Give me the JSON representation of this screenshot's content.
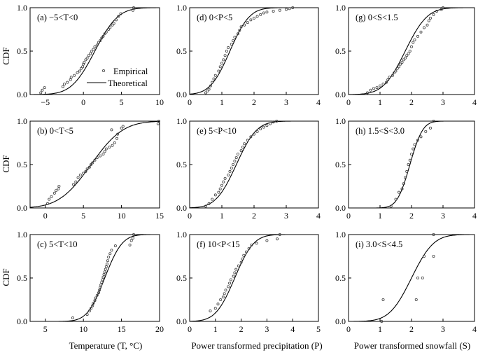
{
  "figure": {
    "legend": {
      "empirical": "Empirical",
      "theoretical": "Theoretical"
    },
    "xlabels": [
      "Temperature (T, °C)",
      "Power transformed precipitation (P)",
      "Power transformed snowfall (S)"
    ],
    "ylabel": "CDF"
  },
  "chart_data": [
    {
      "type": "scatter",
      "id": "a",
      "title": "(a) −5<T<0",
      "xlim": [
        -7,
        10
      ],
      "ylim": [
        0,
        1
      ],
      "xticks": [
        -5,
        0,
        5,
        10
      ],
      "xtick_labels": [
        "−5",
        "0",
        "5",
        "10"
      ],
      "yticks": [
        0,
        0.5,
        1
      ],
      "ytick_labels": [
        "0.0",
        "0.5",
        "1.0"
      ],
      "curve": {
        "mu": 1.5,
        "sigma": 2.4
      },
      "points": [
        [
          -5.6,
          0.02
        ],
        [
          -5.4,
          0.05
        ],
        [
          -5.1,
          0.08
        ],
        [
          -2.7,
          0.09
        ],
        [
          -2.5,
          0.12
        ],
        [
          -2.1,
          0.14
        ],
        [
          -1.7,
          0.17
        ],
        [
          -1.6,
          0.2
        ],
        [
          -1.2,
          0.22
        ],
        [
          -0.8,
          0.25
        ],
        [
          -0.5,
          0.27
        ],
        [
          -0.3,
          0.3
        ],
        [
          -0.1,
          0.32
        ],
        [
          0.0,
          0.35
        ],
        [
          0.1,
          0.37
        ],
        [
          0.3,
          0.4
        ],
        [
          0.5,
          0.42
        ],
        [
          0.7,
          0.45
        ],
        [
          0.9,
          0.47
        ],
        [
          1.1,
          0.5
        ],
        [
          1.3,
          0.52
        ],
        [
          1.5,
          0.55
        ],
        [
          1.8,
          0.57
        ],
        [
          2.0,
          0.6
        ],
        [
          2.2,
          0.62
        ],
        [
          2.4,
          0.65
        ],
        [
          2.6,
          0.67
        ],
        [
          2.8,
          0.7
        ],
        [
          3.0,
          0.72
        ],
        [
          3.3,
          0.75
        ],
        [
          3.5,
          0.77
        ],
        [
          3.8,
          0.8
        ],
        [
          4.0,
          0.82
        ],
        [
          4.3,
          0.86
        ],
        [
          4.6,
          0.9
        ],
        [
          4.9,
          0.93
        ],
        [
          6.5,
          0.97
        ],
        [
          6.6,
          1.0
        ]
      ]
    },
    {
      "type": "scatter",
      "id": "d",
      "title": "(d) 0<P<5",
      "xlim": [
        0,
        4
      ],
      "ylim": [
        0,
        1
      ],
      "xticks": [
        0,
        1,
        2,
        3,
        4
      ],
      "xtick_labels": [
        "0",
        "1",
        "2",
        "3",
        "4"
      ],
      "yticks": [
        0,
        0.5,
        1
      ],
      "ytick_labels": [
        "0.0",
        "0.5",
        "1.0"
      ],
      "curve": {
        "mu": 1.25,
        "sigma": 0.48
      },
      "points": [
        [
          0.5,
          0.02
        ],
        [
          0.55,
          0.04
        ],
        [
          0.6,
          0.06
        ],
        [
          0.65,
          0.1
        ],
        [
          0.7,
          0.14
        ],
        [
          0.75,
          0.18
        ],
        [
          0.8,
          0.22
        ],
        [
          0.9,
          0.27
        ],
        [
          0.95,
          0.32
        ],
        [
          1.0,
          0.36
        ],
        [
          1.05,
          0.4
        ],
        [
          1.1,
          0.45
        ],
        [
          1.15,
          0.5
        ],
        [
          1.2,
          0.54
        ],
        [
          1.3,
          0.58
        ],
        [
          1.35,
          0.62
        ],
        [
          1.4,
          0.66
        ],
        [
          1.5,
          0.7
        ],
        [
          1.55,
          0.74
        ],
        [
          1.6,
          0.78
        ],
        [
          1.7,
          0.8
        ],
        [
          1.8,
          0.83
        ],
        [
          1.9,
          0.86
        ],
        [
          2.0,
          0.88
        ],
        [
          2.1,
          0.9
        ],
        [
          2.2,
          0.92
        ],
        [
          2.3,
          0.94
        ],
        [
          2.4,
          0.95
        ],
        [
          2.6,
          0.96
        ],
        [
          2.8,
          0.97
        ],
        [
          3.0,
          0.98
        ],
        [
          3.1,
          0.99
        ],
        [
          3.2,
          1.0
        ]
      ]
    },
    {
      "type": "scatter",
      "id": "g",
      "title": "(g) 0<S<1.5",
      "xlim": [
        0,
        4
      ],
      "ylim": [
        0,
        1
      ],
      "xticks": [
        0,
        1,
        2,
        3,
        4
      ],
      "xtick_labels": [
        "0",
        "1",
        "2",
        "3",
        "4"
      ],
      "yticks": [
        0,
        0.5,
        1
      ],
      "ytick_labels": [
        "0.0",
        "0.5",
        "1.0"
      ],
      "curve": {
        "mu": 1.8,
        "sigma": 0.55
      },
      "points": [
        [
          0.6,
          0.02
        ],
        [
          0.7,
          0.05
        ],
        [
          0.8,
          0.07
        ],
        [
          0.9,
          0.08
        ],
        [
          1.0,
          0.1
        ],
        [
          1.1,
          0.12
        ],
        [
          1.2,
          0.14
        ],
        [
          1.25,
          0.17
        ],
        [
          1.3,
          0.2
        ],
        [
          1.4,
          0.22
        ],
        [
          1.45,
          0.25
        ],
        [
          1.5,
          0.27
        ],
        [
          1.55,
          0.3
        ],
        [
          1.6,
          0.32
        ],
        [
          1.65,
          0.35
        ],
        [
          1.7,
          0.37
        ],
        [
          1.75,
          0.4
        ],
        [
          1.8,
          0.42
        ],
        [
          1.85,
          0.45
        ],
        [
          1.9,
          0.47
        ],
        [
          1.95,
          0.5
        ],
        [
          2.0,
          0.55
        ],
        [
          2.05,
          0.6
        ],
        [
          2.1,
          0.63
        ],
        [
          2.2,
          0.67
        ],
        [
          2.3,
          0.72
        ],
        [
          2.4,
          0.77
        ],
        [
          2.5,
          0.8
        ],
        [
          2.55,
          0.85
        ],
        [
          2.6,
          0.88
        ],
        [
          2.7,
          0.92
        ],
        [
          2.8,
          0.96
        ],
        [
          2.95,
          0.98
        ],
        [
          3.0,
          1.0
        ]
      ]
    },
    {
      "type": "scatter",
      "id": "b",
      "title": "(b) 0<T<5",
      "xlim": [
        -2,
        15
      ],
      "ylim": [
        0,
        1
      ],
      "xticks": [
        0,
        5,
        10,
        15
      ],
      "xtick_labels": [
        "0",
        "5",
        "10",
        "15"
      ],
      "yticks": [
        0,
        0.5,
        1
      ],
      "ytick_labels": [
        "0.0",
        "0.5",
        "1.0"
      ],
      "curve": {
        "mu": 6.0,
        "sigma": 3.3
      },
      "points": [
        [
          0.3,
          0.05
        ],
        [
          0.5,
          0.1
        ],
        [
          0.8,
          0.13
        ],
        [
          1.2,
          0.17
        ],
        [
          1.4,
          0.2
        ],
        [
          1.7,
          0.22
        ],
        [
          1.8,
          0.25
        ],
        [
          3.7,
          0.27
        ],
        [
          4.0,
          0.3
        ],
        [
          4.3,
          0.35
        ],
        [
          4.6,
          0.38
        ],
        [
          5.0,
          0.4
        ],
        [
          5.3,
          0.42
        ],
        [
          5.5,
          0.45
        ],
        [
          5.8,
          0.47
        ],
        [
          6.0,
          0.5
        ],
        [
          6.2,
          0.52
        ],
        [
          6.5,
          0.55
        ],
        [
          6.8,
          0.58
        ],
        [
          7.2,
          0.6
        ],
        [
          7.6,
          0.62
        ],
        [
          7.8,
          0.65
        ],
        [
          8.0,
          0.68
        ],
        [
          8.4,
          0.7
        ],
        [
          8.8,
          0.72
        ],
        [
          9.1,
          0.75
        ],
        [
          9.4,
          0.8
        ],
        [
          9.5,
          0.85
        ],
        [
          8.7,
          0.9
        ],
        [
          10.0,
          0.92
        ],
        [
          10.2,
          0.94
        ],
        [
          14.8,
          0.97
        ],
        [
          14.9,
          1.0
        ]
      ]
    },
    {
      "type": "scatter",
      "id": "e",
      "title": "(e) 5<P<10",
      "xlim": [
        0,
        4
      ],
      "ylim": [
        0,
        1
      ],
      "xticks": [
        0,
        1,
        2,
        3,
        4
      ],
      "xtick_labels": [
        "0",
        "1",
        "2",
        "3",
        "4"
      ],
      "yticks": [
        0,
        0.5,
        1
      ],
      "ytick_labels": [
        "0.0",
        "0.5",
        "1.0"
      ],
      "curve": {
        "mu": 1.45,
        "sigma": 0.5
      },
      "points": [
        [
          0.5,
          0.02
        ],
        [
          0.6,
          0.05
        ],
        [
          0.7,
          0.1
        ],
        [
          0.8,
          0.15
        ],
        [
          0.9,
          0.18
        ],
        [
          0.95,
          0.22
        ],
        [
          1.0,
          0.26
        ],
        [
          1.05,
          0.3
        ],
        [
          1.1,
          0.34
        ],
        [
          1.2,
          0.38
        ],
        [
          1.25,
          0.42
        ],
        [
          1.3,
          0.46
        ],
        [
          1.35,
          0.5
        ],
        [
          1.4,
          0.54
        ],
        [
          1.45,
          0.58
        ],
        [
          1.5,
          0.62
        ],
        [
          1.6,
          0.66
        ],
        [
          1.65,
          0.7
        ],
        [
          1.7,
          0.74
        ],
        [
          1.8,
          0.78
        ],
        [
          1.9,
          0.82
        ],
        [
          2.0,
          0.85
        ],
        [
          2.1,
          0.88
        ],
        [
          2.2,
          0.91
        ],
        [
          2.3,
          0.93
        ],
        [
          2.4,
          0.95
        ],
        [
          2.5,
          0.97
        ],
        [
          2.6,
          0.99
        ],
        [
          2.7,
          1.0
        ]
      ]
    },
    {
      "type": "scatter",
      "id": "h",
      "title": "(h) 1.5<S<3.0",
      "xlim": [
        0,
        4
      ],
      "ylim": [
        0,
        1
      ],
      "xticks": [
        0,
        1,
        2,
        3,
        4
      ],
      "xtick_labels": [
        "0",
        "1",
        "2",
        "3",
        "4"
      ],
      "yticks": [
        0,
        0.5,
        1
      ],
      "ytick_labels": [
        "0.0",
        "0.5",
        "1.0"
      ],
      "curve": {
        "mu": 1.95,
        "sigma": 0.32
      },
      "points": [
        [
          1.35,
          0.02
        ],
        [
          1.5,
          0.1
        ],
        [
          1.6,
          0.18
        ],
        [
          1.7,
          0.22
        ],
        [
          1.75,
          0.28
        ],
        [
          1.8,
          0.35
        ],
        [
          1.85,
          0.42
        ],
        [
          1.9,
          0.5
        ],
        [
          1.95,
          0.55
        ],
        [
          2.0,
          0.62
        ],
        [
          2.05,
          0.68
        ],
        [
          2.1,
          0.73
        ],
        [
          2.2,
          0.78
        ],
        [
          2.3,
          0.82
        ],
        [
          2.45,
          0.88
        ],
        [
          2.6,
          0.92
        ],
        [
          2.7,
          1.0
        ]
      ]
    },
    {
      "type": "scatter",
      "id": "c",
      "title": "(c) 5<T<10",
      "xlim": [
        3,
        20
      ],
      "ylim": [
        0,
        1
      ],
      "xticks": [
        5,
        10,
        15,
        20
      ],
      "xtick_labels": [
        "5",
        "10",
        "15",
        "20"
      ],
      "yticks": [
        0,
        0.5,
        1
      ],
      "ytick_labels": [
        "0.0",
        "0.5",
        "1.0"
      ],
      "curve": {
        "mu": 12.8,
        "sigma": 1.8
      },
      "points": [
        [
          8.6,
          0.04
        ],
        [
          10.5,
          0.08
        ],
        [
          10.8,
          0.12
        ],
        [
          11.0,
          0.15
        ],
        [
          11.2,
          0.18
        ],
        [
          11.3,
          0.21
        ],
        [
          11.5,
          0.24
        ],
        [
          11.6,
          0.27
        ],
        [
          11.8,
          0.3
        ],
        [
          12.0,
          0.33
        ],
        [
          12.1,
          0.36
        ],
        [
          12.2,
          0.39
        ],
        [
          12.3,
          0.42
        ],
        [
          12.4,
          0.45
        ],
        [
          12.5,
          0.48
        ],
        [
          12.6,
          0.51
        ],
        [
          12.7,
          0.54
        ],
        [
          12.8,
          0.57
        ],
        [
          12.9,
          0.6
        ],
        [
          13.0,
          0.63
        ],
        [
          13.1,
          0.66
        ],
        [
          13.2,
          0.7
        ],
        [
          13.3,
          0.74
        ],
        [
          13.5,
          0.78
        ],
        [
          13.7,
          0.82
        ],
        [
          14.2,
          0.87
        ],
        [
          16.1,
          0.88
        ],
        [
          16.3,
          0.93
        ],
        [
          16.5,
          0.96
        ],
        [
          16.6,
          1.0
        ]
      ]
    },
    {
      "type": "scatter",
      "id": "f",
      "title": "(f) 10<P<15",
      "xlim": [
        0,
        5
      ],
      "ylim": [
        0,
        1
      ],
      "xticks": [
        0,
        1,
        2,
        3,
        4,
        5
      ],
      "xtick_labels": [
        "0",
        "1",
        "2",
        "3",
        "4",
        "5"
      ],
      "yticks": [
        0,
        0.5,
        1
      ],
      "ytick_labels": [
        "0.0",
        "0.5",
        "1.0"
      ],
      "curve": {
        "mu": 1.75,
        "sigma": 0.58
      },
      "points": [
        [
          0.8,
          0.12
        ],
        [
          1.0,
          0.15
        ],
        [
          1.1,
          0.2
        ],
        [
          1.2,
          0.25
        ],
        [
          1.3,
          0.28
        ],
        [
          1.35,
          0.32
        ],
        [
          1.4,
          0.36
        ],
        [
          1.5,
          0.4
        ],
        [
          1.55,
          0.44
        ],
        [
          1.6,
          0.48
        ],
        [
          1.7,
          0.52
        ],
        [
          1.75,
          0.56
        ],
        [
          1.8,
          0.6
        ],
        [
          1.9,
          0.64
        ],
        [
          2.0,
          0.68
        ],
        [
          2.05,
          0.72
        ],
        [
          2.1,
          0.76
        ],
        [
          2.2,
          0.8
        ],
        [
          2.3,
          0.84
        ],
        [
          2.4,
          0.88
        ],
        [
          2.6,
          0.9
        ],
        [
          3.0,
          0.93
        ],
        [
          3.4,
          0.95
        ],
        [
          3.5,
          1.0
        ]
      ]
    },
    {
      "type": "scatter",
      "id": "i",
      "title": "(i) 3.0<S<4.5",
      "xlim": [
        0,
        4
      ],
      "ylim": [
        0,
        1
      ],
      "xticks": [
        0,
        1,
        2,
        3,
        4
      ],
      "xtick_labels": [
        "0",
        "1",
        "2",
        "3",
        "4"
      ],
      "yticks": [
        0,
        0.5,
        1
      ],
      "ytick_labels": [
        "0.0",
        "0.5",
        "1.0"
      ],
      "curve": {
        "mu": 2.0,
        "sigma": 0.55
      },
      "points": [
        [
          1.05,
          0.0
        ],
        [
          1.1,
          0.25
        ],
        [
          2.15,
          0.25
        ],
        [
          2.2,
          0.5
        ],
        [
          2.35,
          0.5
        ],
        [
          2.4,
          0.75
        ],
        [
          2.7,
          0.75
        ],
        [
          2.7,
          1.0
        ]
      ]
    }
  ]
}
